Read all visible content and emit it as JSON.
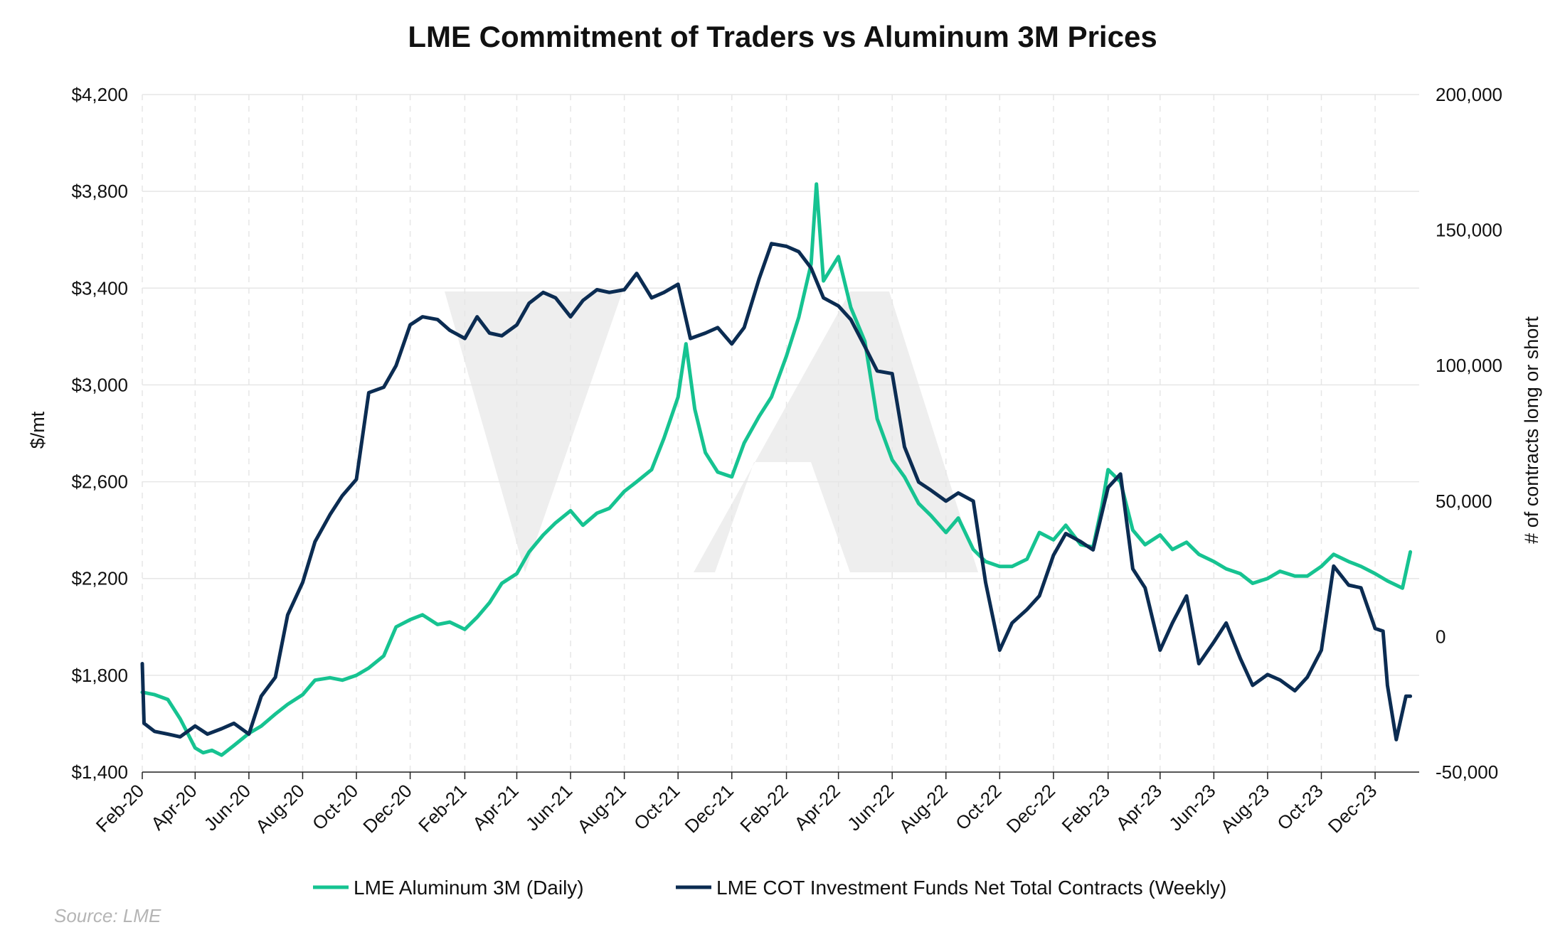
{
  "chart_data": {
    "type": "line",
    "title": "LME Commitment of Traders vs Aluminum 3M Prices",
    "ylabel": "$/mt",
    "y2label": "# of contracts long or short",
    "source": "Source: LME",
    "grid": true,
    "legend_position": "bottom-center",
    "ylim": [
      1400,
      4200
    ],
    "y2lim": [
      -50000,
      200000
    ],
    "yticks": [
      "$1,400",
      "$1,800",
      "$2,200",
      "$2,600",
      "$3,000",
      "$3,400",
      "$3,800",
      "$4,200"
    ],
    "y2ticks": [
      "-50,000",
      "0",
      "50,000",
      "100,000",
      "150,000",
      "200,000"
    ],
    "xticks": [
      "Feb-20",
      "Apr-20",
      "Jun-20",
      "Aug-20",
      "Oct-20",
      "Dec-20",
      "Feb-21",
      "Apr-21",
      "Jun-21",
      "Aug-21",
      "Oct-21",
      "Dec-21",
      "Feb-22",
      "Apr-22",
      "Jun-22",
      "Aug-22",
      "Oct-22",
      "Dec-22",
      "Feb-23",
      "Apr-23",
      "Jun-23",
      "Aug-23",
      "Oct-23",
      "Dec-23"
    ],
    "colors": {
      "aluminum": "#16c391",
      "cot": "#0b2c52",
      "grid": "#e6e6e6",
      "watermark": "#e8e8e8"
    },
    "series": [
      {
        "name": "LME Aluminum 3M (Daily)",
        "axis": "left",
        "x": [
          "2020-02-01",
          "2020-02-15",
          "2020-03-01",
          "2020-03-15",
          "2020-04-01",
          "2020-04-10",
          "2020-04-20",
          "2020-05-01",
          "2020-05-15",
          "2020-06-01",
          "2020-06-15",
          "2020-07-01",
          "2020-07-15",
          "2020-08-01",
          "2020-08-15",
          "2020-09-01",
          "2020-09-15",
          "2020-10-01",
          "2020-10-15",
          "2020-11-01",
          "2020-11-15",
          "2020-12-01",
          "2020-12-15",
          "2021-01-01",
          "2021-01-15",
          "2021-02-01",
          "2021-02-15",
          "2021-03-01",
          "2021-03-15",
          "2021-04-01",
          "2021-04-15",
          "2021-05-01",
          "2021-05-15",
          "2021-06-01",
          "2021-06-15",
          "2021-07-01",
          "2021-07-15",
          "2021-08-01",
          "2021-08-15",
          "2021-09-01",
          "2021-09-15",
          "2021-10-01",
          "2021-10-10",
          "2021-10-20",
          "2021-11-01",
          "2021-11-15",
          "2021-12-01",
          "2021-12-15",
          "2022-01-01",
          "2022-01-15",
          "2022-02-01",
          "2022-02-15",
          "2022-03-01",
          "2022-03-07",
          "2022-03-15",
          "2022-04-01",
          "2022-04-15",
          "2022-05-01",
          "2022-05-15",
          "2022-06-01",
          "2022-06-15",
          "2022-07-01",
          "2022-07-15",
          "2022-08-01",
          "2022-08-15",
          "2022-09-01",
          "2022-09-15",
          "2022-10-01",
          "2022-10-15",
          "2022-11-01",
          "2022-11-15",
          "2022-12-01",
          "2022-12-15",
          "2023-01-01",
          "2023-01-15",
          "2023-01-25",
          "2023-02-01",
          "2023-02-15",
          "2023-03-01",
          "2023-03-15",
          "2023-04-01",
          "2023-04-15",
          "2023-05-01",
          "2023-05-15",
          "2023-06-01",
          "2023-06-15",
          "2023-07-01",
          "2023-07-15",
          "2023-08-01",
          "2023-08-15",
          "2023-09-01",
          "2023-09-15",
          "2023-10-01",
          "2023-10-15",
          "2023-11-01",
          "2023-11-15",
          "2023-12-01",
          "2023-12-15",
          "2024-01-01",
          "2024-01-10"
        ],
        "y": [
          1730,
          1720,
          1700,
          1620,
          1500,
          1480,
          1490,
          1470,
          1510,
          1560,
          1590,
          1640,
          1680,
          1720,
          1780,
          1790,
          1780,
          1800,
          1830,
          1880,
          2000,
          2030,
          2050,
          2010,
          2020,
          1990,
          2040,
          2100,
          2180,
          2220,
          2310,
          2380,
          2430,
          2480,
          2420,
          2470,
          2490,
          2560,
          2600,
          2650,
          2780,
          2950,
          3170,
          2900,
          2720,
          2640,
          2620,
          2760,
          2870,
          2950,
          3120,
          3280,
          3500,
          3830,
          3430,
          3530,
          3320,
          3180,
          2860,
          2690,
          2620,
          2510,
          2460,
          2390,
          2450,
          2320,
          2270,
          2250,
          2250,
          2280,
          2390,
          2360,
          2420,
          2340,
          2330,
          2500,
          2650,
          2600,
          2400,
          2340,
          2380,
          2320,
          2350,
          2300,
          2270,
          2240,
          2220,
          2180,
          2200,
          2230,
          2210,
          2210,
          2250,
          2300,
          2270,
          2250,
          2220,
          2190,
          2160,
          2310
        ]
      },
      {
        "name": "LME COT Investment Funds Net Total Contracts (Weekly)",
        "axis": "right",
        "x": [
          "2020-02-01",
          "2020-02-03",
          "2020-02-15",
          "2020-03-01",
          "2020-03-15",
          "2020-04-01",
          "2020-04-15",
          "2020-05-01",
          "2020-05-15",
          "2020-06-01",
          "2020-06-15",
          "2020-07-01",
          "2020-07-15",
          "2020-08-01",
          "2020-08-15",
          "2020-09-01",
          "2020-09-15",
          "2020-10-01",
          "2020-10-15",
          "2020-11-01",
          "2020-11-15",
          "2020-12-01",
          "2020-12-15",
          "2021-01-01",
          "2021-01-15",
          "2021-02-01",
          "2021-02-15",
          "2021-03-01",
          "2021-03-15",
          "2021-04-01",
          "2021-04-15",
          "2021-05-01",
          "2021-05-15",
          "2021-06-01",
          "2021-06-15",
          "2021-07-01",
          "2021-07-15",
          "2021-08-01",
          "2021-08-15",
          "2021-09-01",
          "2021-09-15",
          "2021-10-01",
          "2021-10-15",
          "2021-11-01",
          "2021-11-15",
          "2021-12-01",
          "2021-12-15",
          "2022-01-01",
          "2022-01-15",
          "2022-02-01",
          "2022-02-15",
          "2022-03-01",
          "2022-03-15",
          "2022-04-01",
          "2022-04-15",
          "2022-05-01",
          "2022-05-15",
          "2022-06-01",
          "2022-06-15",
          "2022-07-01",
          "2022-07-15",
          "2022-08-01",
          "2022-08-15",
          "2022-09-01",
          "2022-09-15",
          "2022-10-01",
          "2022-10-15",
          "2022-11-01",
          "2022-11-15",
          "2022-12-01",
          "2022-12-15",
          "2023-01-01",
          "2023-01-15",
          "2023-02-01",
          "2023-02-15",
          "2023-03-01",
          "2023-03-15",
          "2023-04-01",
          "2023-04-15",
          "2023-05-01",
          "2023-05-15",
          "2023-06-01",
          "2023-06-15",
          "2023-07-01",
          "2023-07-15",
          "2023-08-01",
          "2023-08-15",
          "2023-09-01",
          "2023-09-15",
          "2023-10-01",
          "2023-10-15",
          "2023-11-01",
          "2023-11-15",
          "2023-12-01",
          "2023-12-10",
          "2023-12-15",
          "2023-12-25",
          "2024-01-05",
          "2024-01-10"
        ],
        "y": [
          -10000,
          -32000,
          -35000,
          -36000,
          -37000,
          -33000,
          -36000,
          -34000,
          -32000,
          -36000,
          -22000,
          -15000,
          8000,
          20000,
          35000,
          45000,
          52000,
          58000,
          90000,
          92000,
          100000,
          115000,
          118000,
          117000,
          113000,
          110000,
          118000,
          112000,
          111000,
          115000,
          123000,
          127000,
          125000,
          118000,
          124000,
          128000,
          127000,
          128000,
          134000,
          125000,
          127000,
          130000,
          110000,
          112000,
          114000,
          108000,
          114000,
          132000,
          145000,
          144000,
          142000,
          136000,
          125000,
          122000,
          117000,
          107000,
          98000,
          97000,
          70000,
          57000,
          54000,
          50000,
          53000,
          50000,
          20000,
          -5000,
          5000,
          10000,
          15000,
          30000,
          38000,
          35000,
          32000,
          55000,
          60000,
          25000,
          18000,
          -5000,
          5000,
          15000,
          -10000,
          -2000,
          5000,
          -8000,
          -18000,
          -14000,
          -16000,
          -20000,
          -15000,
          -5000,
          26000,
          19000,
          18000,
          3000,
          2000,
          -18000,
          -38000,
          -22000,
          -22000
        ]
      }
    ]
  }
}
